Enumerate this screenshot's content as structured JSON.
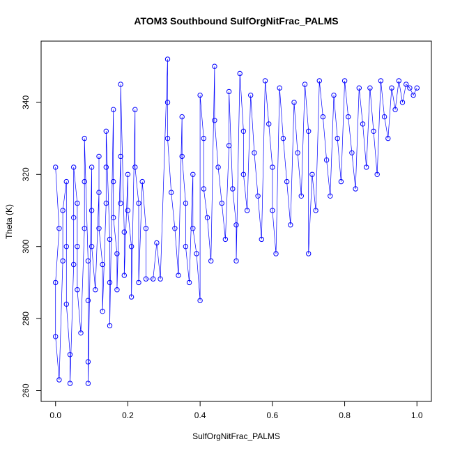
{
  "chart_data": {
    "type": "scatter",
    "title": "ATOM3 Southbound SulfOrgNitFrac_PALMS",
    "xlabel": "SulfOrgNitFrac_PALMS",
    "ylabel": "Theta (K)",
    "xlim": [
      -0.04,
      1.04
    ],
    "ylim": [
      257,
      357
    ],
    "x_ticks": [
      0.0,
      0.2,
      0.4,
      0.6,
      0.8,
      1.0
    ],
    "x_tick_labels": [
      "0.0",
      "0.2",
      "0.4",
      "0.6",
      "0.8",
      "1.0"
    ],
    "y_ticks": [
      260,
      280,
      300,
      320,
      340
    ],
    "y_tick_labels": [
      "260",
      "280",
      "300",
      "320",
      "340"
    ],
    "grid": false,
    "legend": "none",
    "marker": "open-circle",
    "connected_lines": true,
    "color": "#0000ff",
    "series": [
      {
        "points": [
          [
            0.0,
            322
          ],
          [
            0.01,
            305
          ],
          [
            0.0,
            290
          ],
          [
            0.0,
            275
          ],
          [
            0.01,
            263
          ],
          [
            0.02,
            296
          ],
          [
            0.02,
            310
          ],
          [
            0.03,
            318
          ],
          [
            0.03,
            300
          ],
          [
            0.03,
            284
          ],
          [
            0.04,
            270
          ],
          [
            0.04,
            262
          ],
          [
            0.05,
            295
          ],
          [
            0.05,
            308
          ],
          [
            0.05,
            322
          ],
          [
            0.06,
            312
          ],
          [
            0.06,
            300
          ],
          [
            0.06,
            288
          ],
          [
            0.07,
            276
          ],
          [
            0.08,
            305
          ],
          [
            0.08,
            318
          ],
          [
            0.08,
            330
          ],
          [
            0.09,
            296
          ],
          [
            0.09,
            285
          ],
          [
            0.09,
            268
          ],
          [
            0.09,
            262
          ],
          [
            0.1,
            322
          ],
          [
            0.1,
            310
          ],
          [
            0.1,
            300
          ],
          [
            0.11,
            288
          ],
          [
            0.12,
            315
          ],
          [
            0.12,
            325
          ],
          [
            0.12,
            305
          ],
          [
            0.13,
            295
          ],
          [
            0.13,
            282
          ],
          [
            0.14,
            312
          ],
          [
            0.14,
            322
          ],
          [
            0.14,
            332
          ],
          [
            0.15,
            302
          ],
          [
            0.15,
            290
          ],
          [
            0.15,
            278
          ],
          [
            0.16,
            338
          ],
          [
            0.16,
            318
          ],
          [
            0.16,
            308
          ],
          [
            0.17,
            298
          ],
          [
            0.17,
            288
          ],
          [
            0.18,
            325
          ],
          [
            0.18,
            312
          ],
          [
            0.18,
            345
          ],
          [
            0.19,
            304
          ],
          [
            0.19,
            292
          ],
          [
            0.2,
            320
          ],
          [
            0.2,
            310
          ],
          [
            0.21,
            300
          ],
          [
            0.21,
            286
          ],
          [
            0.22,
            338
          ],
          [
            0.22,
            322
          ],
          [
            0.23,
            312
          ],
          [
            0.23,
            290
          ],
          [
            0.24,
            318
          ],
          [
            0.25,
            305
          ],
          [
            0.25,
            291
          ],
          [
            0.27,
            291
          ],
          [
            0.28,
            301
          ],
          [
            0.29,
            291
          ],
          [
            0.31,
            352
          ],
          [
            0.31,
            340
          ],
          [
            0.31,
            330
          ],
          [
            0.32,
            315
          ],
          [
            0.33,
            305
          ],
          [
            0.34,
            292
          ],
          [
            0.35,
            336
          ],
          [
            0.35,
            325
          ],
          [
            0.36,
            312
          ],
          [
            0.36,
            300
          ],
          [
            0.37,
            290
          ],
          [
            0.38,
            320
          ],
          [
            0.38,
            305
          ],
          [
            0.39,
            298
          ],
          [
            0.4,
            285
          ],
          [
            0.4,
            342
          ],
          [
            0.41,
            330
          ],
          [
            0.41,
            316
          ],
          [
            0.42,
            308
          ],
          [
            0.43,
            296
          ],
          [
            0.44,
            350
          ],
          [
            0.44,
            335
          ],
          [
            0.45,
            322
          ],
          [
            0.46,
            312
          ],
          [
            0.47,
            302
          ],
          [
            0.48,
            328
          ],
          [
            0.48,
            343
          ],
          [
            0.49,
            316
          ],
          [
            0.5,
            306
          ],
          [
            0.5,
            296
          ],
          [
            0.51,
            348
          ],
          [
            0.52,
            332
          ],
          [
            0.52,
            320
          ],
          [
            0.53,
            310
          ],
          [
            0.54,
            342
          ],
          [
            0.55,
            326
          ],
          [
            0.56,
            314
          ],
          [
            0.57,
            302
          ],
          [
            0.58,
            346
          ],
          [
            0.59,
            334
          ],
          [
            0.6,
            322
          ],
          [
            0.6,
            310
          ],
          [
            0.61,
            298
          ],
          [
            0.62,
            344
          ],
          [
            0.63,
            330
          ],
          [
            0.64,
            318
          ],
          [
            0.65,
            306
          ],
          [
            0.66,
            340
          ],
          [
            0.67,
            326
          ],
          [
            0.68,
            314
          ],
          [
            0.69,
            345
          ],
          [
            0.7,
            332
          ],
          [
            0.7,
            298
          ],
          [
            0.71,
            320
          ],
          [
            0.72,
            310
          ],
          [
            0.73,
            346
          ],
          [
            0.74,
            336
          ],
          [
            0.75,
            324
          ],
          [
            0.76,
            314
          ],
          [
            0.77,
            342
          ],
          [
            0.78,
            330
          ],
          [
            0.79,
            318
          ],
          [
            0.8,
            346
          ],
          [
            0.81,
            336
          ],
          [
            0.82,
            326
          ],
          [
            0.83,
            316
          ],
          [
            0.84,
            344
          ],
          [
            0.85,
            334
          ],
          [
            0.86,
            322
          ],
          [
            0.87,
            344
          ],
          [
            0.88,
            332
          ],
          [
            0.89,
            320
          ],
          [
            0.9,
            346
          ],
          [
            0.91,
            336
          ],
          [
            0.92,
            330
          ],
          [
            0.93,
            344
          ],
          [
            0.94,
            338
          ],
          [
            0.95,
            346
          ],
          [
            0.96,
            340
          ],
          [
            0.97,
            345
          ],
          [
            0.98,
            344
          ],
          [
            0.99,
            342
          ],
          [
            1.0,
            344
          ]
        ]
      }
    ]
  }
}
